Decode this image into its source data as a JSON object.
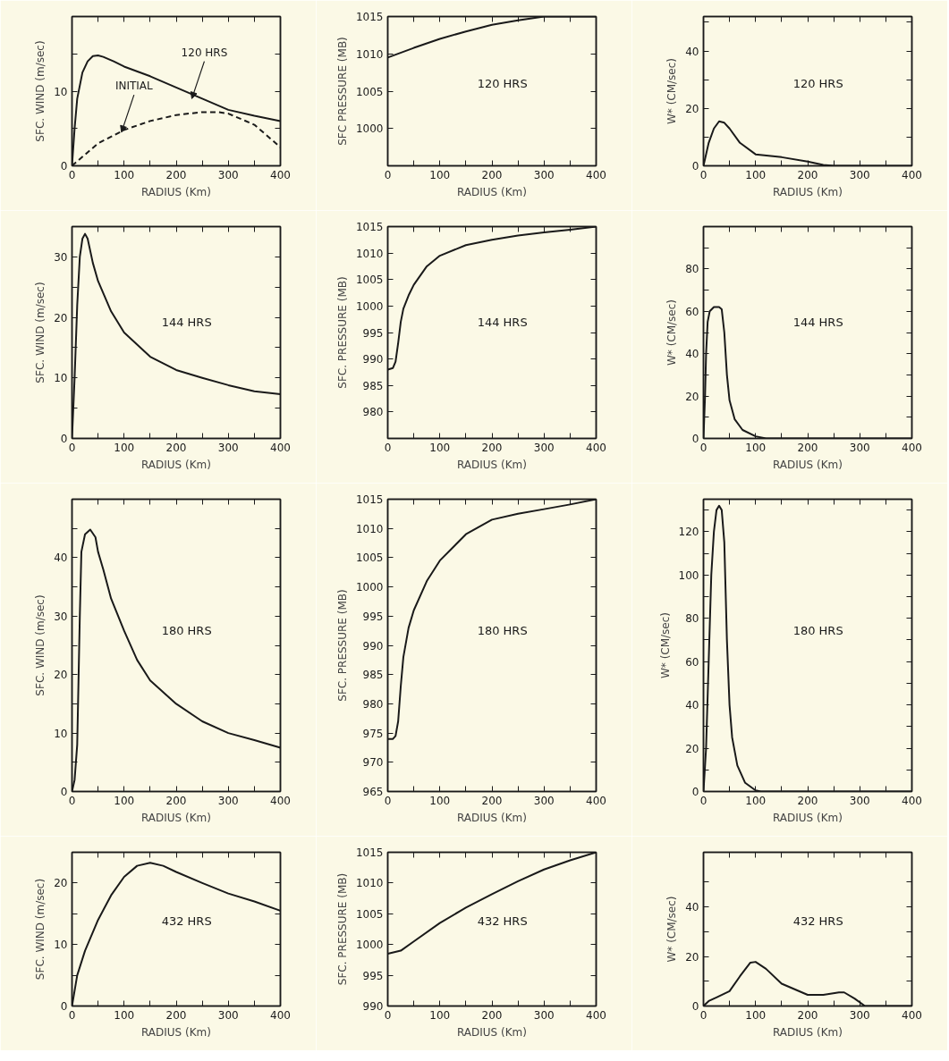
{
  "chart_data": [
    {
      "type": "line",
      "xlabel": "RADIUS (Km)",
      "ylabel": "SFC. WIND (m/sec)",
      "xlim": [
        0,
        400
      ],
      "ylim": [
        0,
        20
      ],
      "xticks": [
        0,
        {
          "value": 50,
          "label": null
        },
        100,
        {
          "value": 150,
          "label": null
        },
        200,
        {
          "value": 250,
          "label": null
        },
        300,
        {
          "value": 350,
          "label": null
        },
        400
      ],
      "yticks": [
        0,
        {
          "value": 5,
          "label": null
        },
        10,
        {
          "value": 15,
          "label": null
        }
      ],
      "grid": false,
      "annotations": [
        {
          "text": "120 HRS",
          "x": 230,
          "y": 9
        },
        {
          "text": "INITIAL",
          "x": 95,
          "y": 4.5
        }
      ],
      "series": [
        {
          "color": "#1a1a1a",
          "line_style": "solid",
          "x": [
            0,
            5,
            10,
            20,
            30,
            40,
            50,
            60,
            80,
            100,
            150,
            200,
            250,
            300,
            350,
            400
          ],
          "values": [
            0,
            5,
            9,
            12.5,
            14,
            14.7,
            14.8,
            14.6,
            14,
            13.3,
            12,
            10.5,
            9,
            7.5,
            6.7,
            6
          ]
        },
        {
          "color": "#1a1a1a",
          "line_style": "dashed",
          "x": [
            0,
            50,
            100,
            150,
            200,
            250,
            280,
            300,
            350,
            400
          ],
          "values": [
            0,
            3,
            4.8,
            6,
            6.8,
            7.2,
            7.2,
            7,
            5.5,
            2.5
          ]
        }
      ]
    },
    {
      "type": "line",
      "xlabel": "RADIUS (Km)",
      "ylabel": "SFC PRESSURE (MB)",
      "xlim": [
        0,
        400
      ],
      "ylim": [
        995,
        1015
      ],
      "xticks": [
        0,
        {
          "value": 50,
          "label": null
        },
        100,
        {
          "value": 150,
          "label": null
        },
        200,
        {
          "value": 250,
          "label": null
        },
        300,
        {
          "value": 350,
          "label": null
        },
        400
      ],
      "yticks": [
        1000,
        1005,
        1010,
        1015
      ],
      "grid": false,
      "annotations": [
        "120 HRS"
      ],
      "series": [
        {
          "color": "#1a1a1a",
          "x": [
            0,
            50,
            100,
            150,
            200,
            250,
            300,
            400
          ],
          "values": [
            1009.5,
            1010.8,
            1012,
            1013,
            1013.9,
            1014.5,
            1015,
            1015
          ]
        }
      ]
    },
    {
      "type": "line",
      "xlabel": "RADIUS (Km)",
      "ylabel": "W* (CM/sec)",
      "xlim": [
        0,
        400
      ],
      "ylim": [
        0,
        52
      ],
      "xticks": [
        0,
        {
          "value": 50,
          "label": null
        },
        100,
        {
          "value": 150,
          "label": null
        },
        200,
        {
          "value": 250,
          "label": null
        },
        300,
        {
          "value": 350,
          "label": null
        },
        400
      ],
      "yticks": [
        0,
        {
          "value": 10,
          "label": null
        },
        20,
        {
          "value": 30,
          "label": null
        },
        40,
        {
          "value": 50,
          "label": null
        }
      ],
      "grid": false,
      "annotations": [
        "120 HRS"
      ],
      "series": [
        {
          "color": "#1a1a1a",
          "x": [
            0,
            10,
            20,
            30,
            40,
            50,
            70,
            100,
            150,
            200,
            230,
            250,
            400
          ],
          "values": [
            0,
            8,
            13,
            15.5,
            15,
            13,
            8,
            4,
            3,
            1.5,
            0.3,
            0,
            0
          ]
        }
      ]
    },
    {
      "type": "line",
      "xlabel": "RADIUS (Km)",
      "ylabel": "SFC. WIND (m/sec)",
      "xlim": [
        0,
        400
      ],
      "ylim": [
        0,
        35
      ],
      "xticks": [
        0,
        {
          "value": 50,
          "label": null
        },
        100,
        {
          "value": 150,
          "label": null
        },
        200,
        {
          "value": 250,
          "label": null
        },
        300,
        {
          "value": 350,
          "label": null
        },
        400
      ],
      "yticks": [
        0,
        {
          "value": 5,
          "label": null
        },
        10,
        {
          "value": 15,
          "label": null
        },
        20,
        {
          "value": 25,
          "label": null
        },
        30
      ],
      "grid": false,
      "annotations": [
        "144 HRS"
      ],
      "series": [
        {
          "color": "#1a1a1a",
          "x": [
            0,
            5,
            10,
            15,
            20,
            25,
            30,
            40,
            50,
            75,
            100,
            150,
            200,
            250,
            300,
            350,
            400
          ],
          "values": [
            0,
            10,
            22,
            30,
            33,
            33.8,
            33,
            29,
            26,
            21,
            17.5,
            13.5,
            11.3,
            10,
            8.8,
            7.8,
            7.3
          ]
        }
      ]
    },
    {
      "type": "line",
      "xlabel": "RADIUS (Km)",
      "ylabel": "SFC. PRESSURE (MB)",
      "xlim": [
        0,
        400
      ],
      "ylim": [
        975,
        1015
      ],
      "xticks": [
        0,
        {
          "value": 50,
          "label": null
        },
        100,
        {
          "value": 150,
          "label": null
        },
        200,
        {
          "value": 250,
          "label": null
        },
        300,
        {
          "value": 350,
          "label": null
        },
        400
      ],
      "yticks": [
        980,
        985,
        990,
        995,
        1000,
        1005,
        1010,
        1015
      ],
      "grid": false,
      "annotations": [
        "144 HRS"
      ],
      "series": [
        {
          "color": "#1a1a1a",
          "x": [
            0,
            10,
            15,
            20,
            25,
            30,
            40,
            50,
            75,
            100,
            150,
            200,
            250,
            300,
            350,
            400
          ],
          "values": [
            988,
            988.3,
            989.5,
            993,
            997,
            999.5,
            1002,
            1004,
            1007.5,
            1009.5,
            1011.5,
            1012.5,
            1013.3,
            1013.9,
            1014.4,
            1015
          ]
        }
      ]
    },
    {
      "type": "line",
      "xlabel": "RADIUS (Km)",
      "ylabel": "W* (CM/sec)",
      "xlim": [
        0,
        400
      ],
      "ylim": [
        0,
        100
      ],
      "xticks": [
        0,
        {
          "value": 50,
          "label": null
        },
        100,
        {
          "value": 150,
          "label": null
        },
        200,
        {
          "value": 250,
          "label": null
        },
        300,
        {
          "value": 350,
          "label": null
        },
        400
      ],
      "yticks": [
        0,
        {
          "value": 10,
          "label": null
        },
        20,
        {
          "value": 30,
          "label": null
        },
        40,
        {
          "value": 50,
          "label": null
        },
        60,
        {
          "value": 70,
          "label": null
        },
        80,
        {
          "value": 90,
          "label": null
        }
      ],
      "grid": false,
      "annotations": [
        "144 HRS"
      ],
      "series": [
        {
          "color": "#1a1a1a",
          "x": [
            0,
            3,
            5,
            8,
            12,
            20,
            30,
            35,
            40,
            45,
            50,
            60,
            75,
            100,
            120,
            400
          ],
          "values": [
            0,
            20,
            40,
            55,
            60,
            62,
            62,
            61,
            50,
            30,
            18,
            9,
            4,
            1,
            0,
            0
          ]
        }
      ]
    },
    {
      "type": "line",
      "xlabel": "RADIUS (Km)",
      "ylabel": "SFC. WIND (m/sec)",
      "xlim": [
        0,
        400
      ],
      "ylim": [
        0,
        50
      ],
      "xticks": [
        0,
        {
          "value": 50,
          "label": null
        },
        100,
        {
          "value": 150,
          "label": null
        },
        200,
        {
          "value": 250,
          "label": null
        },
        300,
        {
          "value": 350,
          "label": null
        },
        400
      ],
      "yticks": [
        0,
        {
          "value": 5,
          "label": null
        },
        10,
        {
          "value": 15,
          "label": null
        },
        20,
        {
          "value": 25,
          "label": null
        },
        30,
        {
          "value": 35,
          "label": null
        },
        40,
        {
          "value": 45,
          "label": null
        }
      ],
      "grid": false,
      "annotations": [
        "180 HRS"
      ],
      "series": [
        {
          "color": "#1a1a1a",
          "x": [
            0,
            5,
            10,
            15,
            18,
            25,
            35,
            45,
            50,
            60,
            75,
            100,
            125,
            150,
            200,
            250,
            300,
            350,
            400
          ],
          "values": [
            0,
            2,
            8,
            30,
            41,
            44,
            44.8,
            43.5,
            41,
            38,
            33,
            27.5,
            22.5,
            19,
            15,
            12,
            10,
            8.8,
            7.5
          ]
        }
      ]
    },
    {
      "type": "line",
      "xlabel": "RADIUS (Km)",
      "ylabel": "SFC. PRESSURE (MB)",
      "xlim": [
        0,
        400
      ],
      "ylim": [
        965,
        1015
      ],
      "xticks": [
        0,
        {
          "value": 50,
          "label": null
        },
        100,
        {
          "value": 150,
          "label": null
        },
        200,
        {
          "value": 250,
          "label": null
        },
        300,
        {
          "value": 350,
          "label": null
        },
        400
      ],
      "yticks": [
        965,
        970,
        975,
        980,
        985,
        990,
        995,
        1000,
        1005,
        1010,
        1015
      ],
      "grid": false,
      "annotations": [
        "180 HRS"
      ],
      "series": [
        {
          "color": "#1a1a1a",
          "x": [
            0,
            10,
            15,
            20,
            25,
            30,
            40,
            50,
            75,
            100,
            150,
            200,
            250,
            300,
            350,
            400
          ],
          "values": [
            974,
            974,
            974.5,
            977,
            983,
            988,
            993,
            996,
            1001,
            1004.5,
            1009,
            1011.5,
            1012.5,
            1013.3,
            1014.1,
            1015
          ]
        }
      ]
    },
    {
      "type": "line",
      "xlabel": "RADIUS (Km)",
      "ylabel": "W* (CM/sec)",
      "xlim": [
        0,
        400
      ],
      "ylim": [
        0,
        135
      ],
      "xticks": [
        0,
        {
          "value": 50,
          "label": null
        },
        100,
        {
          "value": 150,
          "label": null
        },
        200,
        {
          "value": 250,
          "label": null
        },
        300,
        {
          "value": 350,
          "label": null
        },
        400
      ],
      "yticks": [
        0,
        {
          "value": 10,
          "label": null
        },
        20,
        {
          "value": 30,
          "label": null
        },
        40,
        {
          "value": 50,
          "label": null
        },
        60,
        {
          "value": 70,
          "label": null
        },
        80,
        {
          "value": 90,
          "label": null
        },
        100,
        {
          "value": 110,
          "label": null
        },
        120,
        {
          "value": 130,
          "label": null
        }
      ],
      "grid": false,
      "annotations": [
        "180 HRS"
      ],
      "series": [
        {
          "color": "#1a1a1a",
          "x": [
            0,
            5,
            10,
            15,
            20,
            25,
            30,
            35,
            40,
            45,
            50,
            55,
            65,
            80,
            100,
            110,
            400
          ],
          "values": [
            0,
            20,
            60,
            100,
            120,
            130,
            132,
            130,
            115,
            70,
            40,
            25,
            12,
            4,
            0.5,
            0,
            0
          ]
        }
      ]
    },
    {
      "type": "line",
      "xlabel": "RADIUS (Km)",
      "ylabel": "SFC. WIND (m/sec)",
      "xlim": [
        0,
        400
      ],
      "ylim": [
        0,
        25
      ],
      "xticks": [
        0,
        {
          "value": 50,
          "label": null
        },
        100,
        {
          "value": 150,
          "label": null
        },
        200,
        {
          "value": 250,
          "label": null
        },
        300,
        {
          "value": 350,
          "label": null
        },
        400
      ],
      "yticks": [
        0,
        {
          "value": 5,
          "label": null
        },
        10,
        {
          "value": 15,
          "label": null
        },
        20
      ],
      "grid": false,
      "annotations": [
        "432 HRS"
      ],
      "series": [
        {
          "color": "#1a1a1a",
          "x": [
            0,
            10,
            25,
            50,
            75,
            100,
            125,
            150,
            175,
            200,
            250,
            300,
            350,
            400
          ],
          "values": [
            0,
            5,
            9,
            14,
            18,
            21,
            22.8,
            23.3,
            22.8,
            21.8,
            20,
            18.3,
            17,
            15.5
          ]
        }
      ]
    },
    {
      "type": "line",
      "xlabel": "RADIUS (Km)",
      "ylabel": "SFC. PRESSURE (MB)",
      "xlim": [
        0,
        400
      ],
      "ylim": [
        990,
        1015
      ],
      "xticks": [
        0,
        {
          "value": 50,
          "label": null
        },
        100,
        {
          "value": 150,
          "label": null
        },
        200,
        {
          "value": 250,
          "label": null
        },
        300,
        {
          "value": 350,
          "label": null
        },
        400
      ],
      "yticks": [
        990,
        995,
        1000,
        1005,
        1010,
        1015
      ],
      "grid": false,
      "annotations": [
        "432 HRS"
      ],
      "series": [
        {
          "color": "#1a1a1a",
          "x": [
            0,
            25,
            50,
            100,
            150,
            200,
            250,
            300,
            350,
            400
          ],
          "values": [
            998.5,
            999,
            1000.5,
            1003.5,
            1006,
            1008.2,
            1010.3,
            1012.2,
            1013.7,
            1015
          ]
        }
      ]
    },
    {
      "type": "line",
      "xlabel": "RADIUS (Km)",
      "ylabel": "W* (CM/sec)",
      "xlim": [
        0,
        400
      ],
      "ylim": [
        0,
        62
      ],
      "xticks": [
        0,
        {
          "value": 50,
          "label": null
        },
        100,
        {
          "value": 150,
          "label": null
        },
        200,
        {
          "value": 250,
          "label": null
        },
        300,
        {
          "value": 350,
          "label": null
        },
        400
      ],
      "yticks": [
        0,
        {
          "value": 10,
          "label": null
        },
        20,
        {
          "value": 30,
          "label": null
        },
        40,
        {
          "value": 50,
          "label": null
        }
      ],
      "grid": false,
      "annotations": [
        "432 HRS"
      ],
      "series": [
        {
          "color": "#1a1a1a",
          "x": [
            0,
            10,
            25,
            50,
            70,
            90,
            100,
            120,
            150,
            200,
            230,
            260,
            270,
            290,
            310,
            400
          ],
          "values": [
            0,
            2,
            3.5,
            6,
            12,
            17.5,
            17.8,
            15,
            9,
            4.5,
            4.5,
            5.5,
            5.5,
            3,
            0,
            0
          ]
        }
      ]
    }
  ]
}
